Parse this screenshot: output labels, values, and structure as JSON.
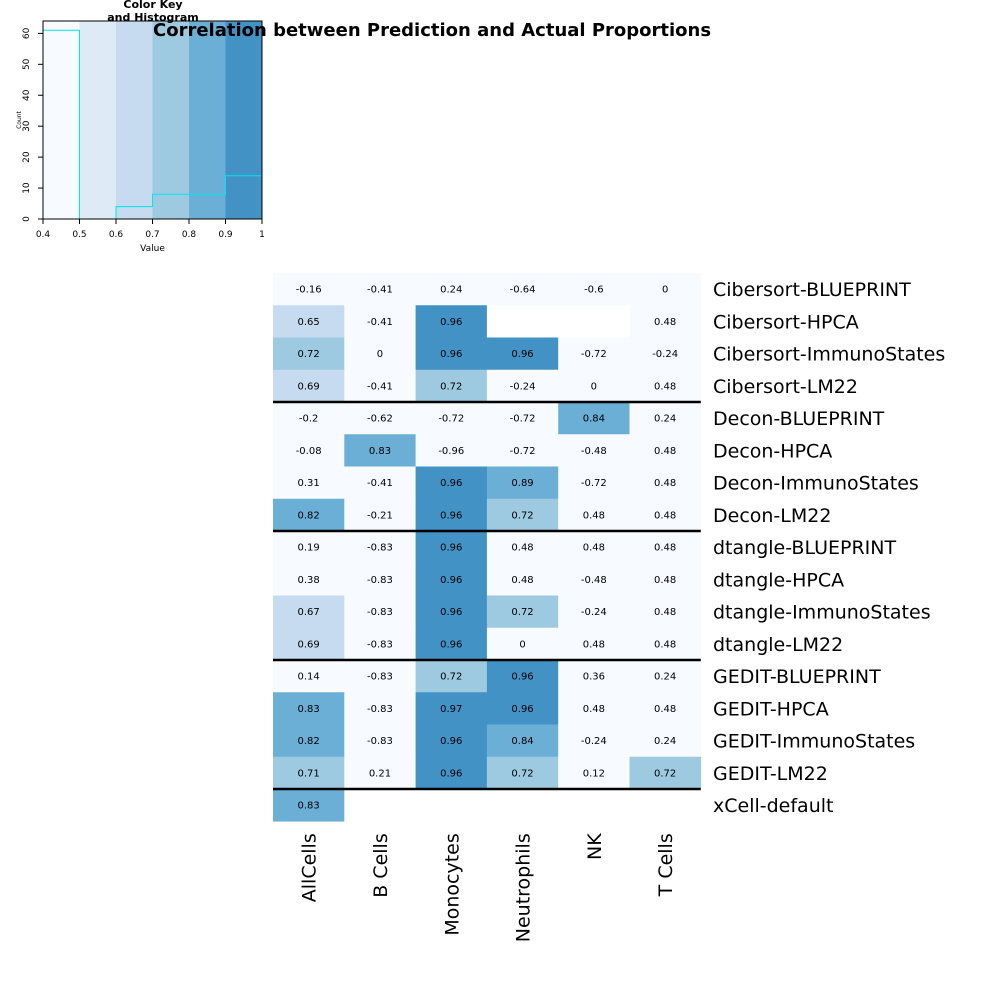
{
  "chart_data": {
    "type": "heatmap",
    "title": "Correlation between Prediction and Actual Proportions",
    "columns": [
      "AllCells",
      "B Cells",
      "Monocytes",
      "Neutrophils",
      "NK",
      "T Cells"
    ],
    "rows": [
      {
        "name": "Cibersort-BLUEPRINT",
        "values": [
          -0.16,
          -0.41,
          0.24,
          -0.64,
          -0.6,
          0
        ]
      },
      {
        "name": "Cibersort-HPCA",
        "values": [
          0.65,
          -0.41,
          0.96,
          null,
          null,
          0.48
        ]
      },
      {
        "name": "Cibersort-ImmunoStates",
        "values": [
          0.72,
          0,
          0.96,
          0.96,
          -0.72,
          -0.24
        ]
      },
      {
        "name": "Cibersort-LM22",
        "values": [
          0.69,
          -0.41,
          0.72,
          -0.24,
          0,
          0.48
        ]
      },
      {
        "name": "Decon-BLUEPRINT",
        "values": [
          -0.2,
          -0.62,
          -0.72,
          -0.72,
          0.84,
          0.24
        ]
      },
      {
        "name": "Decon-HPCA",
        "values": [
          -0.08,
          0.83,
          -0.96,
          -0.72,
          -0.48,
          0.48
        ]
      },
      {
        "name": "Decon-ImmunoStates",
        "values": [
          0.31,
          -0.41,
          0.96,
          0.89,
          -0.72,
          0.48
        ]
      },
      {
        "name": "Decon-LM22",
        "values": [
          0.82,
          -0.21,
          0.96,
          0.72,
          0.48,
          0.48
        ]
      },
      {
        "name": "dtangle-BLUEPRINT",
        "values": [
          0.19,
          -0.83,
          0.96,
          0.48,
          0.48,
          0.48
        ]
      },
      {
        "name": "dtangle-HPCA",
        "values": [
          0.38,
          -0.83,
          0.96,
          0.48,
          -0.48,
          0.48
        ]
      },
      {
        "name": "dtangle-ImmunoStates",
        "values": [
          0.67,
          -0.83,
          0.96,
          0.72,
          -0.24,
          0.48
        ]
      },
      {
        "name": "dtangle-LM22",
        "values": [
          0.69,
          -0.83,
          0.96,
          0,
          0.48,
          0.48
        ]
      },
      {
        "name": "GEDIT-BLUEPRINT",
        "values": [
          0.14,
          -0.83,
          0.72,
          0.96,
          0.36,
          0.24
        ]
      },
      {
        "name": "GEDIT-HPCA",
        "values": [
          0.83,
          -0.83,
          0.97,
          0.96,
          0.48,
          0.48
        ]
      },
      {
        "name": "GEDIT-ImmunoStates",
        "values": [
          0.82,
          -0.83,
          0.96,
          0.84,
          -0.24,
          0.24
        ]
      },
      {
        "name": "GEDIT-LM22",
        "values": [
          0.71,
          0.21,
          0.96,
          0.72,
          0.12,
          0.72
        ]
      },
      {
        "name": "xCell-default",
        "values": [
          0.83,
          null,
          null,
          null,
          null,
          null
        ]
      }
    ],
    "group_separators_after_rows": [
      3,
      7,
      11,
      15
    ],
    "color_scale": {
      "breaks": [
        0.4,
        0.5,
        0.6,
        0.7,
        0.8,
        0.9,
        1.0
      ],
      "colors": [
        "#F7FBFF",
        "#DEEBF7",
        "#C6DBEF",
        "#9ECAE1",
        "#6BAED6",
        "#4292C6"
      ],
      "below_range_color": "#F7FBFF"
    },
    "color_key": {
      "title": "Color Key\nand Histogram",
      "xlabel": "Value",
      "ylabel": "Count",
      "xticks": [
        "0.4",
        "0.5",
        "0.6",
        "0.7",
        "0.8",
        "0.9",
        "1"
      ],
      "yticks": [
        "0",
        "10",
        "20",
        "30",
        "40",
        "50",
        "60"
      ],
      "ylim": [
        0,
        64
      ],
      "histogram_counts": [
        61,
        0,
        4,
        8,
        8,
        14
      ],
      "histogram_color": "#00E5EE"
    }
  }
}
